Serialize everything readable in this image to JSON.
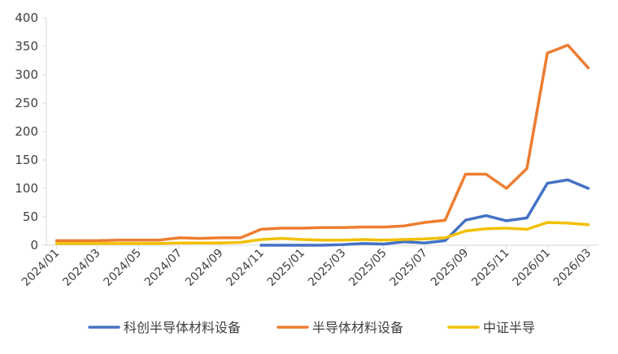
{
  "chart_data": {
    "type": "line",
    "title": "",
    "xlabel": "",
    "ylabel": "",
    "ylim": [
      0,
      400
    ],
    "yticks": [
      "0",
      "50",
      "100",
      "150",
      "200",
      "250",
      "300",
      "350",
      "400"
    ],
    "xticks": [
      "2024/01",
      "2024/03",
      "2024/05",
      "2024/07",
      "2024/09",
      "2024/11",
      "2025/01",
      "2025/03",
      "2025/05",
      "2025/07",
      "2025/09",
      "2025/11",
      "2026/01",
      "2026/03"
    ],
    "x": [
      "2024/01",
      "2024/02",
      "2024/03",
      "2024/04",
      "2024/05",
      "2024/06",
      "2024/07",
      "2024/08",
      "2024/09",
      "2024/10",
      "2024/11",
      "2024/12",
      "2025/01",
      "2025/02",
      "2025/03",
      "2025/04",
      "2025/05",
      "2025/06",
      "2025/07",
      "2025/08",
      "2025/09",
      "2025/10",
      "2025/11",
      "2025/12",
      "2026/01",
      "2026/02",
      "2026/03"
    ],
    "grid": false,
    "legend_position": "bottom",
    "series": [
      {
        "name": "科创半导体材料设备",
        "color": "#4472C4",
        "values": [
          null,
          null,
          null,
          null,
          null,
          null,
          null,
          null,
          null,
          null,
          0,
          0,
          0,
          0,
          1,
          3,
          2,
          6,
          4,
          8,
          44,
          52,
          43,
          48,
          109,
          115,
          100
        ]
      },
      {
        "name": "半导体材料设备",
        "color": "#ED7D31",
        "values": [
          8,
          8,
          8,
          9,
          9,
          9,
          13,
          12,
          13,
          13,
          28,
          30,
          30,
          31,
          31,
          32,
          32,
          34,
          40,
          44,
          125,
          125,
          100,
          135,
          338,
          352,
          312
        ]
      },
      {
        "name": "中证半导",
        "color": "#F2C000",
        "values": [
          3,
          3,
          3,
          3,
          3,
          3,
          4,
          4,
          4,
          5,
          10,
          12,
          10,
          9,
          9,
          10,
          9,
          10,
          11,
          13,
          25,
          29,
          30,
          28,
          40,
          39,
          36
        ]
      }
    ]
  }
}
